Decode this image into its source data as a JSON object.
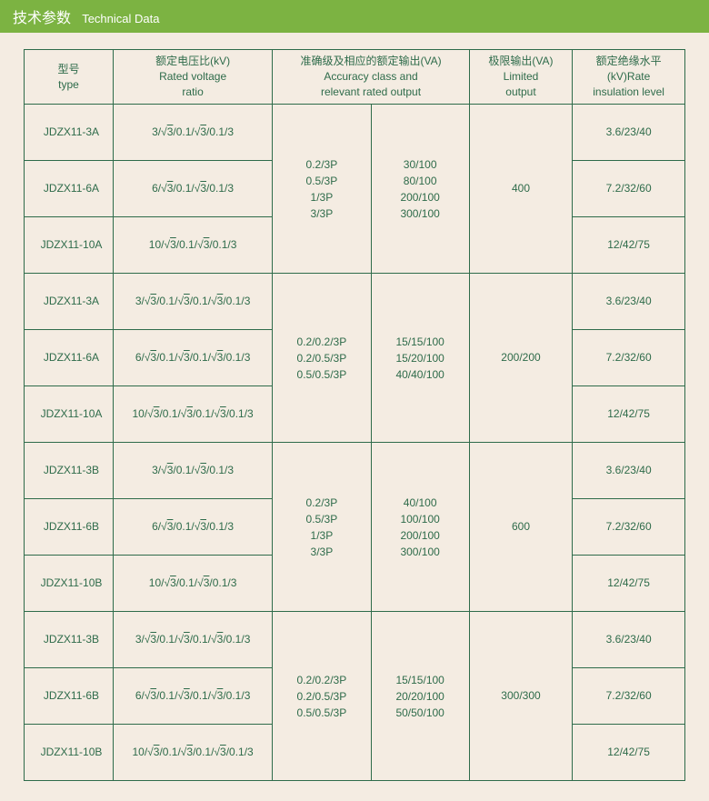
{
  "header": {
    "cn": "技术参数",
    "en": "Technical Data"
  },
  "columns": {
    "type": {
      "cn": "型号",
      "en": "type"
    },
    "ratio": {
      "cn": "额定电压比(kV)",
      "en": "Rated voltage",
      "en2": "ratio"
    },
    "accuracy": {
      "cn": "准确级及相应的额定输出(VA)",
      "en": "Accuracy class and",
      "en2": "relevant rated output"
    },
    "limited": {
      "cn": "极限输出(VA)",
      "en": "Limited",
      "en2": "output"
    },
    "insulation": {
      "cn": "额定绝缘水平",
      "en": "(kV)Rate",
      "en2": "insulation level"
    }
  },
  "groups": [
    {
      "accuracy_lines": [
        "0.2/3P",
        "0.5/3P",
        "1/3P",
        "3/3P"
      ],
      "output_lines": [
        "30/100",
        "80/100",
        "200/100",
        "300/100"
      ],
      "limited": "400",
      "rows": [
        {
          "type": "JDZX11-3A",
          "ratio": "3/√3/0.1/√3/0.1/3",
          "insulation": "3.6/23/40"
        },
        {
          "type": "JDZX11-6A",
          "ratio": "6/√3/0.1/√3/0.1/3",
          "insulation": "7.2/32/60"
        },
        {
          "type": "JDZX11-10A",
          "ratio": "10/√3/0.1/√3/0.1/3",
          "insulation": "12/42/75"
        }
      ]
    },
    {
      "accuracy_lines": [
        "0.2/0.2/3P",
        "0.2/0.5/3P",
        "0.5/0.5/3P"
      ],
      "output_lines": [
        "15/15/100",
        "15/20/100",
        "40/40/100"
      ],
      "limited": "200/200",
      "rows": [
        {
          "type": "JDZX11-3A",
          "ratio": "3/√3/0.1/√3/0.1/√3/0.1/3",
          "insulation": "3.6/23/40"
        },
        {
          "type": "JDZX11-6A",
          "ratio": "6/√3/0.1/√3/0.1/√3/0.1/3",
          "insulation": "7.2/32/60"
        },
        {
          "type": "JDZX11-10A",
          "ratio": "10/√3/0.1/√3/0.1/√3/0.1/3",
          "insulation": "12/42/75"
        }
      ]
    },
    {
      "accuracy_lines": [
        "0.2/3P",
        "0.5/3P",
        "1/3P",
        "3/3P"
      ],
      "output_lines": [
        "40/100",
        "100/100",
        "200/100",
        "300/100"
      ],
      "limited": "600",
      "rows": [
        {
          "type": "JDZX11-3B",
          "ratio": "3/√3/0.1/√3/0.1/3",
          "insulation": "3.6/23/40"
        },
        {
          "type": "JDZX11-6B",
          "ratio": "6/√3/0.1/√3/0.1/3",
          "insulation": "7.2/32/60"
        },
        {
          "type": "JDZX11-10B",
          "ratio": "10/√3/0.1/√3/0.1/3",
          "insulation": "12/42/75"
        }
      ]
    },
    {
      "accuracy_lines": [
        "0.2/0.2/3P",
        "0.2/0.5/3P",
        "0.5/0.5/3P"
      ],
      "output_lines": [
        "15/15/100",
        "20/20/100",
        "50/50/100"
      ],
      "limited": "300/300",
      "rows": [
        {
          "type": "JDZX11-3B",
          "ratio": "3/√3/0.1/√3/0.1/√3/0.1/3",
          "insulation": "3.6/23/40"
        },
        {
          "type": "JDZX11-6B",
          "ratio": "6/√3/0.1/√3/0.1/√3/0.1/3",
          "insulation": "7.2/32/60"
        },
        {
          "type": "JDZX11-10B",
          "ratio": "10/√3/0.1/√3/0.1/√3/0.1/3",
          "insulation": "12/42/75"
        }
      ]
    }
  ],
  "style": {
    "header_bg": "#7cb342",
    "header_fg": "#ffffff",
    "page_bg": "#f4ece2",
    "border_color": "#2e6b4a",
    "text_color": "#2e6b4a",
    "font_size_header_cn": 16,
    "font_size_header_en": 13,
    "font_size_cell": 12
  }
}
